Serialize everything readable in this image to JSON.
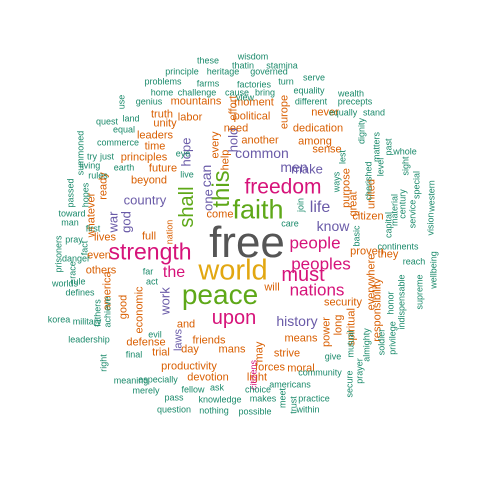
{
  "colors": {
    "teal": "#1b8a6b",
    "orange": "#d95f02",
    "purple": "#6a5ba8",
    "magenta": "#d6137a",
    "green": "#5ea818",
    "gold": "#e2a711",
    "gray": "#555555"
  },
  "words": [
    {
      "text": "free",
      "color": "gray"
    },
    {
      "text": "world",
      "color": "gold"
    },
    {
      "text": "peace",
      "color": "green"
    },
    {
      "text": "faith",
      "color": "green"
    },
    {
      "text": "freedom",
      "color": "magenta"
    },
    {
      "text": "this",
      "color": "green"
    },
    {
      "text": "strength",
      "color": "magenta"
    },
    {
      "text": "upon",
      "color": "magenta"
    },
    {
      "text": "must",
      "color": "magenta"
    },
    {
      "text": "people",
      "color": "magenta"
    },
    {
      "text": "peoples",
      "color": "magenta"
    },
    {
      "text": "nations",
      "color": "magenta"
    },
    {
      "text": "shall",
      "color": "green"
    },
    {
      "text": "the",
      "color": "magenta"
    },
    {
      "text": "history",
      "color": "purple"
    },
    {
      "text": "common",
      "color": "purple"
    },
    {
      "text": "men",
      "color": "purple"
    },
    {
      "text": "life",
      "color": "purple"
    },
    {
      "text": "know",
      "color": "purple"
    },
    {
      "text": "country",
      "color": "purple"
    },
    {
      "text": "work",
      "color": "purple"
    },
    {
      "text": "hope",
      "color": "purple"
    },
    {
      "text": "can",
      "color": "purple"
    },
    {
      "text": "hold",
      "color": "purple"
    },
    {
      "text": "make",
      "color": "purple"
    },
    {
      "text": "one",
      "color": "purple"
    },
    {
      "text": "god",
      "color": "purple"
    },
    {
      "text": "war",
      "color": "purple"
    },
    {
      "text": "security",
      "color": "orange"
    },
    {
      "text": "and",
      "color": "orange"
    },
    {
      "text": "means",
      "color": "orange"
    },
    {
      "text": "friends",
      "color": "orange"
    },
    {
      "text": "strive",
      "color": "orange"
    },
    {
      "text": "productivity",
      "color": "orange"
    },
    {
      "text": "devotion",
      "color": "orange"
    },
    {
      "text": "political",
      "color": "orange"
    },
    {
      "text": "moment",
      "color": "orange"
    },
    {
      "text": "need",
      "color": "orange"
    },
    {
      "text": "dedication",
      "color": "orange"
    },
    {
      "text": "another",
      "color": "orange"
    },
    {
      "text": "among",
      "color": "orange"
    },
    {
      "text": "sense",
      "color": "orange"
    },
    {
      "text": "purpose",
      "color": "orange"
    },
    {
      "text": "principles",
      "color": "orange"
    },
    {
      "text": "beyond",
      "color": "orange"
    },
    {
      "text": "future",
      "color": "orange"
    },
    {
      "text": "time",
      "color": "orange"
    },
    {
      "text": "unity",
      "color": "orange"
    },
    {
      "text": "leaders",
      "color": "orange"
    },
    {
      "text": "truth",
      "color": "orange"
    },
    {
      "text": "labor",
      "color": "orange"
    },
    {
      "text": "mountains",
      "color": "orange"
    },
    {
      "text": "full",
      "color": "orange"
    },
    {
      "text": "come",
      "color": "orange"
    },
    {
      "text": "lives",
      "color": "orange"
    },
    {
      "text": "good",
      "color": "orange"
    },
    {
      "text": "economic",
      "color": "orange"
    },
    {
      "text": "america",
      "color": "orange"
    },
    {
      "text": "others",
      "color": "orange"
    },
    {
      "text": "even",
      "color": "orange"
    },
    {
      "text": "defense",
      "color": "orange"
    },
    {
      "text": "trial",
      "color": "orange"
    },
    {
      "text": "day",
      "color": "orange"
    },
    {
      "text": "mans",
      "color": "orange"
    },
    {
      "text": "may",
      "color": "orange"
    },
    {
      "text": "light",
      "color": "orange"
    },
    {
      "text": "forces",
      "color": "orange"
    },
    {
      "text": "moral",
      "color": "orange"
    },
    {
      "text": "power",
      "color": "orange"
    },
    {
      "text": "long",
      "color": "orange"
    },
    {
      "text": "spiritual",
      "color": "orange"
    },
    {
      "text": "responsibility",
      "color": "orange"
    },
    {
      "text": "they",
      "color": "orange"
    },
    {
      "text": "everywhere",
      "color": "orange"
    },
    {
      "text": "citizen",
      "color": "orange"
    },
    {
      "text": "proven",
      "color": "orange"
    },
    {
      "text": "great",
      "color": "orange"
    },
    {
      "text": "united",
      "color": "orange"
    },
    {
      "text": "never",
      "color": "orange"
    },
    {
      "text": "will",
      "color": "orange"
    },
    {
      "text": "help",
      "color": "orange"
    },
    {
      "text": "every",
      "color": "orange"
    },
    {
      "text": "effort",
      "color": "orange"
    },
    {
      "text": "europe",
      "color": "orange"
    },
    {
      "text": "whatever",
      "color": "orange"
    },
    {
      "text": "ready",
      "color": "orange"
    },
    {
      "text": "nation",
      "color": "orange"
    },
    {
      "text": "laws",
      "color": "purple"
    },
    {
      "text": "citizens",
      "color": "magenta"
    },
    {
      "text": "wisdom",
      "color": "teal"
    },
    {
      "text": "these",
      "color": "teal"
    },
    {
      "text": "thatin",
      "color": "teal"
    },
    {
      "text": "stamina",
      "color": "teal"
    },
    {
      "text": "principle",
      "color": "teal"
    },
    {
      "text": "heritage",
      "color": "teal"
    },
    {
      "text": "governed",
      "color": "teal"
    },
    {
      "text": "serve",
      "color": "teal"
    },
    {
      "text": "problems",
      "color": "teal"
    },
    {
      "text": "farms",
      "color": "teal"
    },
    {
      "text": "factories",
      "color": "teal"
    },
    {
      "text": "turn",
      "color": "teal"
    },
    {
      "text": "home",
      "color": "teal"
    },
    {
      "text": "challenge",
      "color": "teal"
    },
    {
      "text": "cause",
      "color": "teal"
    },
    {
      "text": "bring",
      "color": "teal"
    },
    {
      "text": "equality",
      "color": "teal"
    },
    {
      "text": "genius",
      "color": "teal"
    },
    {
      "text": "view",
      "color": "teal"
    },
    {
      "text": "different",
      "color": "teal"
    },
    {
      "text": "precepts",
      "color": "teal"
    },
    {
      "text": "wealth",
      "color": "teal"
    },
    {
      "text": "use",
      "color": "teal"
    },
    {
      "text": "land",
      "color": "teal"
    },
    {
      "text": "quest",
      "color": "teal"
    },
    {
      "text": "equal",
      "color": "teal"
    },
    {
      "text": "commerce",
      "color": "teal"
    },
    {
      "text": "try",
      "color": "teal"
    },
    {
      "text": "just",
      "color": "teal"
    },
    {
      "text": "living",
      "color": "teal"
    },
    {
      "text": "summoned",
      "color": "teal"
    },
    {
      "text": "passed",
      "color": "teal"
    },
    {
      "text": "hopes",
      "color": "teal"
    },
    {
      "text": "toward",
      "color": "teal"
    },
    {
      "text": "man",
      "color": "teal"
    },
    {
      "text": "first",
      "color": "teal"
    },
    {
      "text": "prisoners",
      "color": "teal"
    },
    {
      "text": "pray",
      "color": "teal"
    },
    {
      "text": "danger",
      "color": "teal"
    },
    {
      "text": "fact",
      "color": "teal"
    },
    {
      "text": "race",
      "color": "teal"
    },
    {
      "text": "rule",
      "color": "teal"
    },
    {
      "text": "defines",
      "color": "teal"
    },
    {
      "text": "worlds",
      "color": "teal"
    },
    {
      "text": "korea",
      "color": "teal"
    },
    {
      "text": "military",
      "color": "teal"
    },
    {
      "text": "leadership",
      "color": "teal"
    },
    {
      "text": "fathers",
      "color": "teal"
    },
    {
      "text": "achieve",
      "color": "teal"
    },
    {
      "text": "earth",
      "color": "teal"
    },
    {
      "text": "rules",
      "color": "teal"
    },
    {
      "text": "right",
      "color": "teal"
    },
    {
      "text": "meaning",
      "color": "teal"
    },
    {
      "text": "final",
      "color": "teal"
    },
    {
      "text": "especially",
      "color": "teal"
    },
    {
      "text": "merely",
      "color": "teal"
    },
    {
      "text": "pass",
      "color": "teal"
    },
    {
      "text": "question",
      "color": "teal"
    },
    {
      "text": "fellow",
      "color": "teal"
    },
    {
      "text": "ask",
      "color": "teal"
    },
    {
      "text": "knowledge",
      "color": "teal"
    },
    {
      "text": "nothing",
      "color": "teal"
    },
    {
      "text": "makes",
      "color": "teal"
    },
    {
      "text": "possible",
      "color": "teal"
    },
    {
      "text": "choice",
      "color": "teal"
    },
    {
      "text": "americans",
      "color": "teal"
    },
    {
      "text": "community",
      "color": "teal"
    },
    {
      "text": "meet",
      "color": "teal"
    },
    {
      "text": "trust",
      "color": "teal"
    },
    {
      "text": "practice",
      "color": "teal"
    },
    {
      "text": "within",
      "color": "teal"
    },
    {
      "text": "give",
      "color": "teal"
    },
    {
      "text": "secure",
      "color": "teal"
    },
    {
      "text": "prayer",
      "color": "teal"
    },
    {
      "text": "mutual",
      "color": "teal"
    },
    {
      "text": "almighty",
      "color": "teal"
    },
    {
      "text": "soldier",
      "color": "teal"
    },
    {
      "text": "privilege",
      "color": "teal"
    },
    {
      "text": "honor",
      "color": "teal"
    },
    {
      "text": "indispensable",
      "color": "teal"
    },
    {
      "text": "continents",
      "color": "teal"
    },
    {
      "text": "reach",
      "color": "teal"
    },
    {
      "text": "wellbeing",
      "color": "teal"
    },
    {
      "text": "supreme",
      "color": "teal"
    },
    {
      "text": "vision",
      "color": "teal"
    },
    {
      "text": "western",
      "color": "teal"
    },
    {
      "text": "service",
      "color": "teal"
    },
    {
      "text": "material",
      "color": "teal"
    },
    {
      "text": "capital",
      "color": "teal"
    },
    {
      "text": "century",
      "color": "teal"
    },
    {
      "text": "special",
      "color": "teal"
    },
    {
      "text": "sight",
      "color": "teal"
    },
    {
      "text": "whole",
      "color": "teal"
    },
    {
      "text": "past",
      "color": "teal"
    },
    {
      "text": "matters",
      "color": "teal"
    },
    {
      "text": "level",
      "color": "teal"
    },
    {
      "text": "stand",
      "color": "teal"
    },
    {
      "text": "equally",
      "color": "teal"
    },
    {
      "text": "dignity",
      "color": "teal"
    },
    {
      "text": "basic",
      "color": "teal"
    },
    {
      "text": "care",
      "color": "teal"
    },
    {
      "text": "join",
      "color": "teal"
    },
    {
      "text": "lest",
      "color": "teal"
    },
    {
      "text": "ways",
      "color": "teal"
    },
    {
      "text": "live",
      "color": "teal"
    },
    {
      "text": "evil",
      "color": "teal"
    },
    {
      "text": "act",
      "color": "teal"
    },
    {
      "text": "far",
      "color": "teal"
    },
    {
      "text": "eye",
      "color": "teal"
    },
    {
      "text": "cherished",
      "color": "teal"
    }
  ]
}
